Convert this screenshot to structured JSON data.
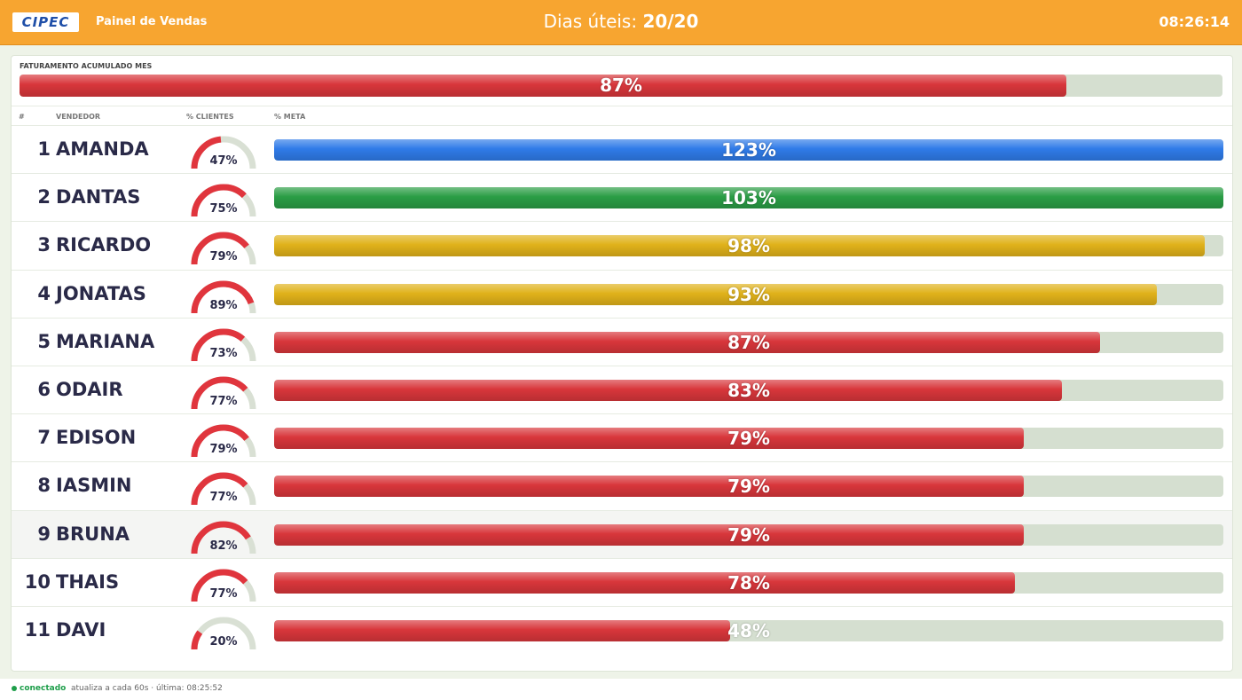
{
  "header": {
    "logo": "CIPEC",
    "title": "Painel de Vendas",
    "days_label": "Dias úteis:",
    "days_value": "20/20",
    "clock": "08:26:14"
  },
  "summary": {
    "title": "FATURAMENTO ACUMULADO MES",
    "value": 87,
    "label": "87%",
    "color": "#d8363b"
  },
  "table": {
    "columns": [
      "#",
      "VENDEDOR",
      "% CLIENTES",
      "% META"
    ],
    "rows": [
      {
        "rank": 1,
        "name": "AMANDA",
        "clientes": 47,
        "clientes_label": "47%",
        "meta": 123,
        "meta_label": "123%",
        "color": "#2f7be8"
      },
      {
        "rank": 2,
        "name": "DANTAS",
        "clientes": 75,
        "clientes_label": "75%",
        "meta": 103,
        "meta_label": "103%",
        "color": "#2a9d45"
      },
      {
        "rank": 3,
        "name": "RICARDO",
        "clientes": 79,
        "clientes_label": "79%",
        "meta": 98,
        "meta_label": "98%",
        "color": "#e0b21a"
      },
      {
        "rank": 4,
        "name": "JONATAS",
        "clientes": 89,
        "clientes_label": "89%",
        "meta": 93,
        "meta_label": "93%",
        "color": "#e0b21a"
      },
      {
        "rank": 5,
        "name": "MARIANA",
        "clientes": 73,
        "clientes_label": "73%",
        "meta": 87,
        "meta_label": "87%",
        "color": "#d8363b"
      },
      {
        "rank": 6,
        "name": "ODAIR",
        "clientes": 77,
        "clientes_label": "77%",
        "meta": 83,
        "meta_label": "83%",
        "color": "#d8363b"
      },
      {
        "rank": 7,
        "name": "EDISON",
        "clientes": 79,
        "clientes_label": "79%",
        "meta": 79,
        "meta_label": "79%",
        "color": "#d8363b"
      },
      {
        "rank": 8,
        "name": "IASMIN",
        "clientes": 77,
        "clientes_label": "77%",
        "meta": 79,
        "meta_label": "79%",
        "color": "#d8363b"
      },
      {
        "rank": 9,
        "name": "BRUNA",
        "clientes": 82,
        "clientes_label": "82%",
        "meta": 79,
        "meta_label": "79%",
        "color": "#d8363b"
      },
      {
        "rank": 10,
        "name": "THAIS",
        "clientes": 77,
        "clientes_label": "77%",
        "meta": 78,
        "meta_label": "78%",
        "color": "#d8363b"
      },
      {
        "rank": 11,
        "name": "DAVI",
        "clientes": 20,
        "clientes_label": "20%",
        "meta": 48,
        "meta_label": "48%",
        "color": "#d8363b"
      }
    ]
  },
  "footer": {
    "status": "conectado",
    "refresh": "atualiza a cada 60s · última: 08:25:52"
  }
}
